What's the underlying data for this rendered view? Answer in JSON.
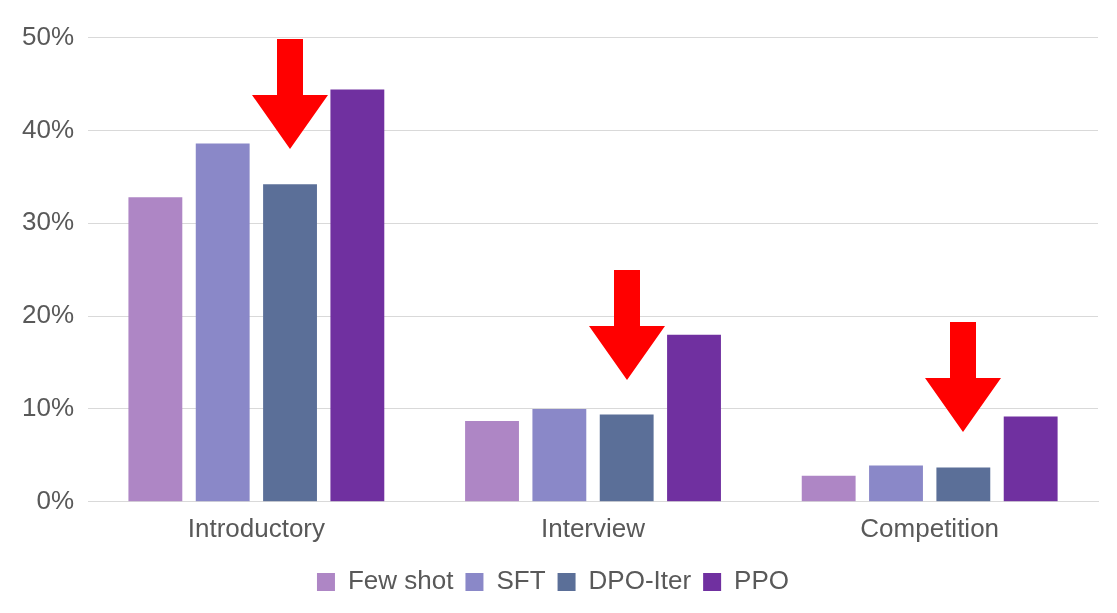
{
  "chart_data": {
    "type": "bar",
    "categories": [
      "Introductory",
      "Interview",
      "Competition"
    ],
    "series": [
      {
        "name": "Few shot",
        "color": "#ae86c5",
        "values": [
          32.8,
          8.7,
          2.8
        ]
      },
      {
        "name": "SFT",
        "color": "#8a88c8",
        "values": [
          38.6,
          10.0,
          3.9
        ]
      },
      {
        "name": "DPO-Iter",
        "color": "#5b6f98",
        "values": [
          34.2,
          9.4,
          3.7
        ]
      },
      {
        "name": "PPO",
        "color": "#7030a0",
        "values": [
          44.4,
          18.0,
          9.2
        ]
      }
    ],
    "ylim": [
      0,
      50
    ],
    "yticks": [
      {
        "value": 0,
        "label": "0%"
      },
      {
        "value": 10,
        "label": "10%"
      },
      {
        "value": 20,
        "label": "20%"
      },
      {
        "value": 30,
        "label": "30%"
      },
      {
        "value": 40,
        "label": "40%"
      },
      {
        "value": 50,
        "label": "50%"
      }
    ],
    "grid": "y",
    "legend": "bottom"
  }
}
